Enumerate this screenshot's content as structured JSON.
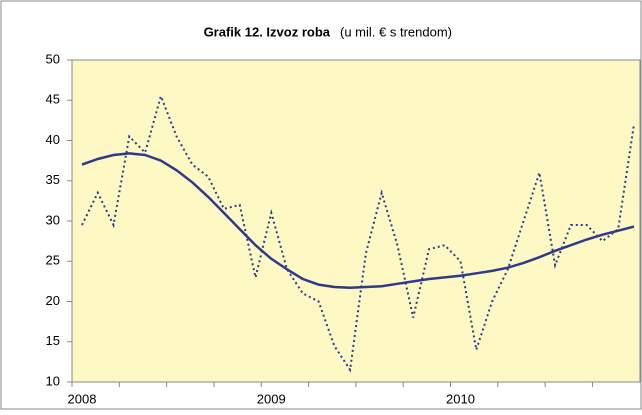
{
  "chart_data": {
    "type": "line",
    "title": "Grafik 12. Izvoz roba",
    "subtitle": "(u mil. € s trendom)",
    "categories": [
      "2008",
      null,
      null,
      null,
      null,
      null,
      null,
      null,
      null,
      null,
      null,
      null,
      "2009",
      null,
      null,
      null,
      null,
      null,
      null,
      null,
      null,
      null,
      null,
      null,
      "2010",
      null,
      null,
      null,
      null,
      null,
      null,
      null,
      null,
      null,
      null,
      null
    ],
    "series": [
      {
        "color": "#2e3a8c",
        "style": "dotted",
        "values": [
          29.5,
          33.5,
          29.5,
          40.5,
          38.5,
          45.5,
          40.5,
          37,
          35.5,
          31.5,
          32,
          23,
          31,
          24,
          21,
          20,
          14.5,
          11.5,
          26,
          33.5,
          27,
          18,
          26.5,
          27,
          25,
          14,
          20,
          24,
          30,
          36,
          24.5,
          29.5,
          29.5,
          27.5,
          29,
          42
        ]
      },
      {
        "color": "#2e3a8c",
        "style": "solid",
        "values": [
          37,
          37.7,
          38.2,
          38.4,
          38.2,
          37.5,
          36.3,
          34.8,
          33,
          31,
          29,
          27,
          25.3,
          24,
          22.8,
          22.1,
          21.8,
          21.7,
          21.8,
          21.9,
          22.2,
          22.5,
          22.8,
          23,
          23.2,
          23.5,
          23.8,
          24.2,
          24.8,
          25.5,
          26.3,
          27,
          27.7,
          28.3,
          28.8,
          29.3
        ]
      }
    ],
    "ylim": [
      10,
      50
    ],
    "yticks": [
      10,
      15,
      20,
      25,
      30,
      35,
      40,
      45,
      50
    ],
    "plot_color": "#fdf8c4"
  }
}
